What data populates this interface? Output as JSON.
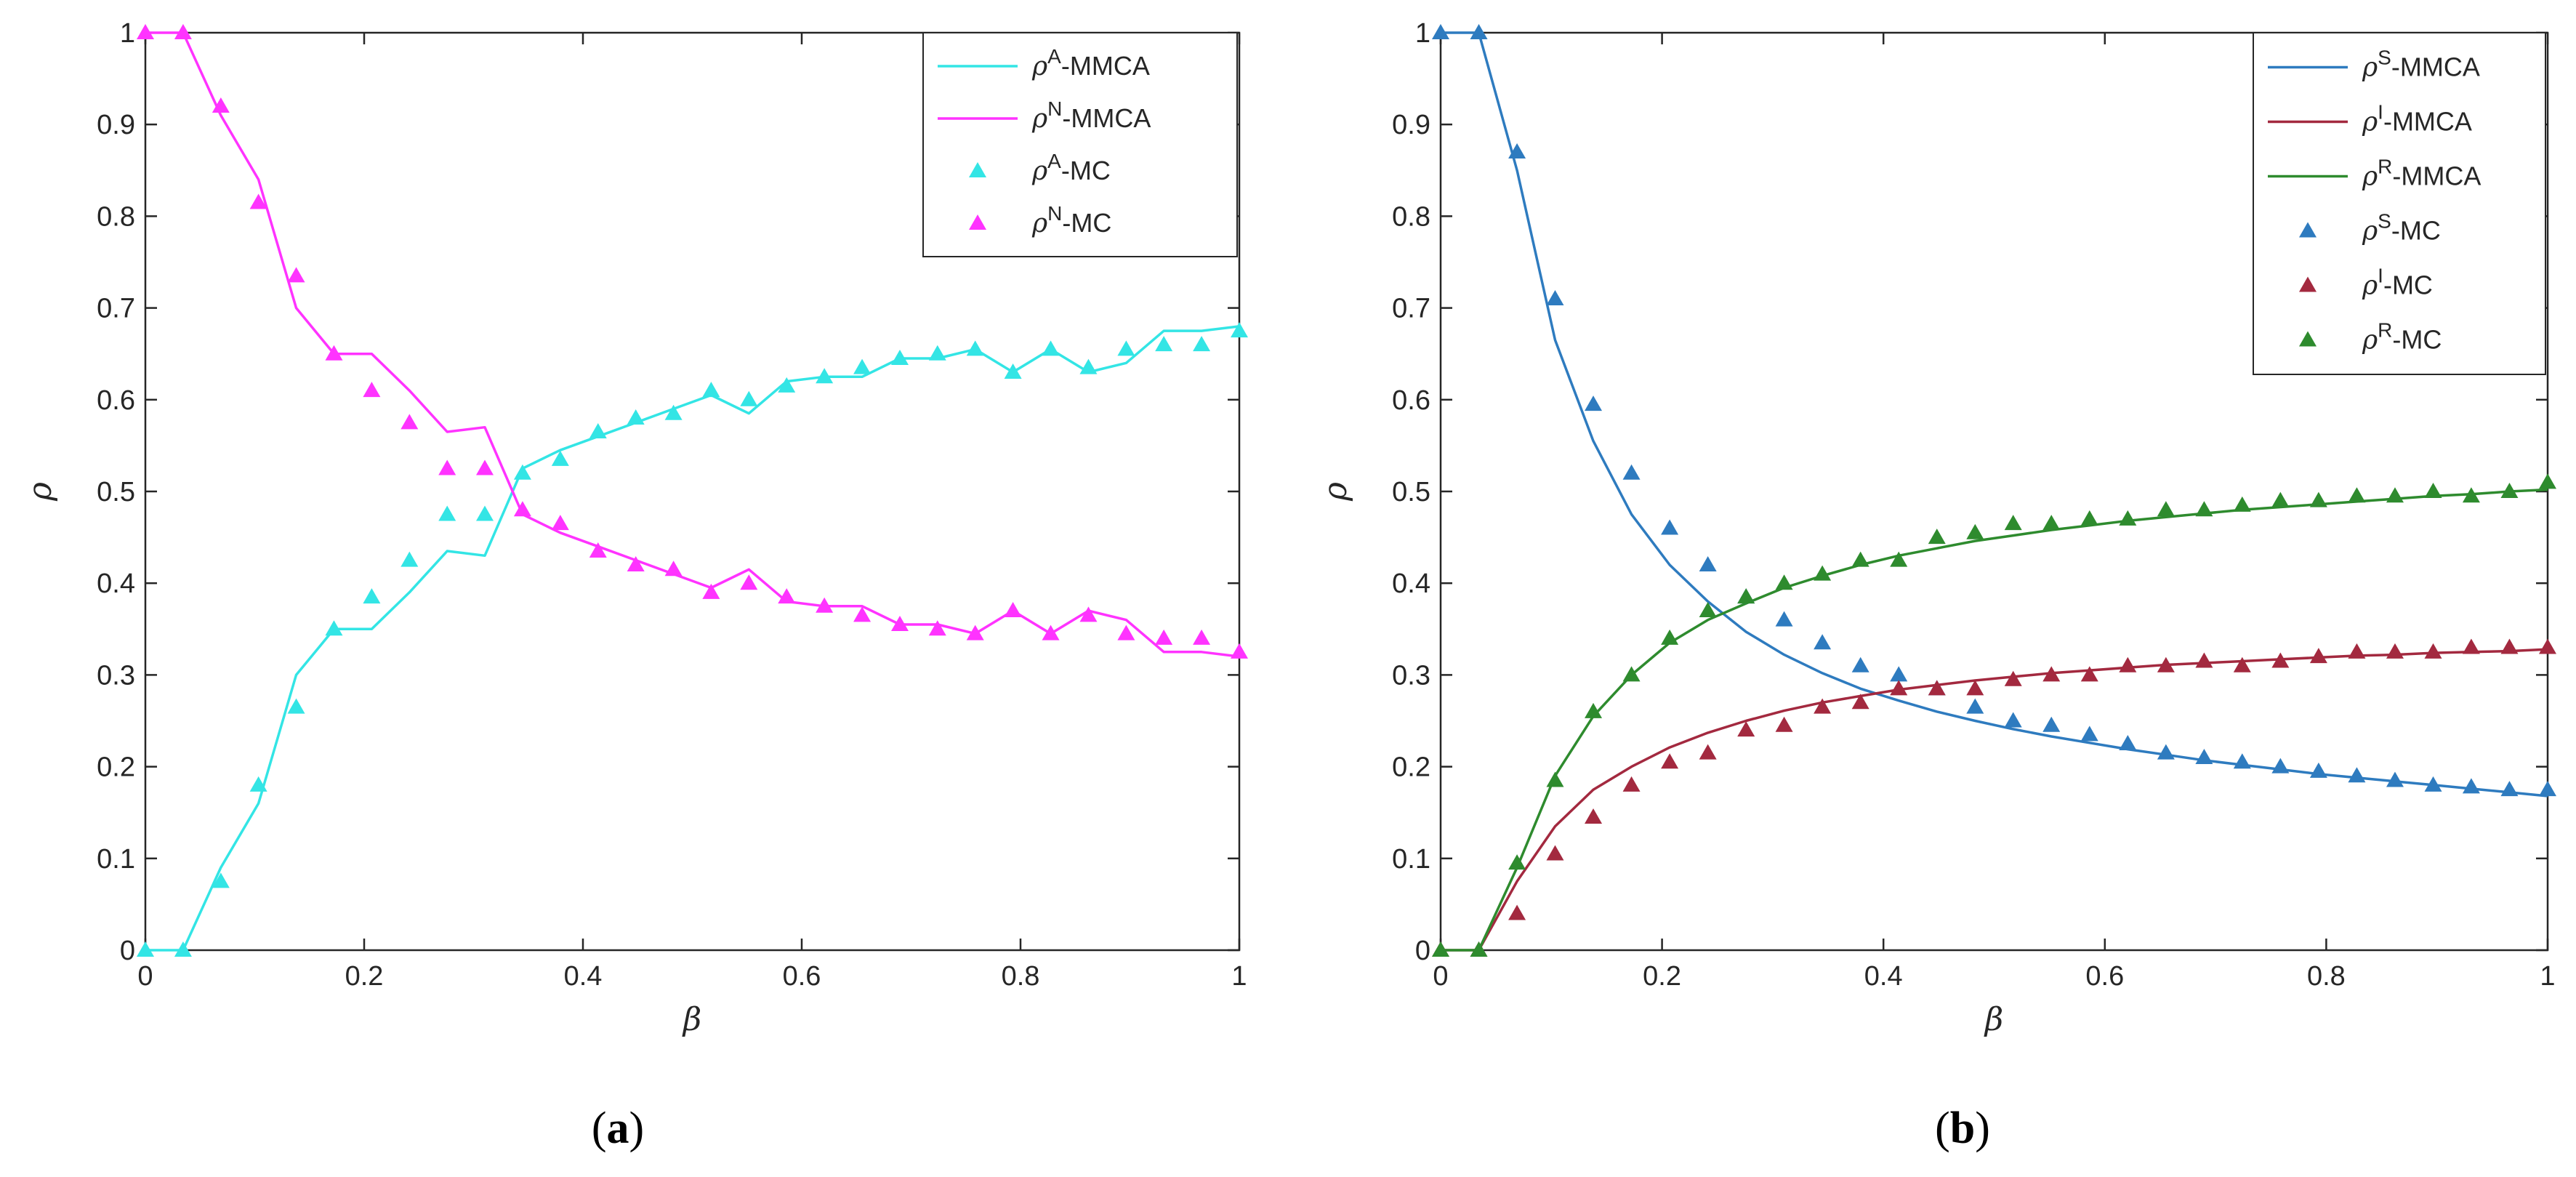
{
  "chart_data": [
    {
      "type": "line",
      "panel": "a",
      "caption_open": "(",
      "caption_letter": "a",
      "caption_close": ")",
      "xlabel": "β",
      "ylabel": "ρ",
      "xlim": [
        0,
        1
      ],
      "ylim": [
        0,
        1
      ],
      "xticks": [
        0,
        0.2,
        0.4,
        0.6,
        0.8,
        1
      ],
      "xtick_labels": [
        "0",
        "0.2",
        "0.4",
        "0.6",
        "0.8",
        "1"
      ],
      "yticks": [
        0,
        0.1,
        0.2,
        0.3,
        0.4,
        0.5,
        0.6,
        0.7,
        0.8,
        0.9,
        1
      ],
      "ytick_labels": [
        "0",
        "0.1",
        "0.2",
        "0.3",
        "0.4",
        "0.5",
        "0.6",
        "0.7",
        "0.8",
        "0.9",
        "1"
      ],
      "legend_position": "top-right",
      "x": [
        0,
        0.0345,
        0.069,
        0.1034,
        0.1379,
        0.1724,
        0.2069,
        0.2414,
        0.2759,
        0.3103,
        0.3448,
        0.3793,
        0.4138,
        0.4483,
        0.4828,
        0.5172,
        0.5517,
        0.5862,
        0.6207,
        0.6552,
        0.6897,
        0.7241,
        0.7586,
        0.7931,
        0.8276,
        0.8621,
        0.8966,
        0.931,
        0.9655,
        1
      ],
      "series": [
        {
          "name": "A-MMCA",
          "symbol": "ρ",
          "sup": "A",
          "suffix": "-MMCA",
          "kind": "line",
          "color": "#33e5e5",
          "values": [
            0,
            0,
            0.09,
            0.16,
            0.3,
            0.35,
            0.35,
            0.39,
            0.435,
            0.43,
            0.525,
            0.545,
            0.56,
            0.575,
            0.59,
            0.605,
            0.585,
            0.62,
            0.625,
            0.625,
            0.645,
            0.645,
            0.655,
            0.63,
            0.655,
            0.63,
            0.64,
            0.675,
            0.675,
            0.68
          ]
        },
        {
          "name": "N-MMCA",
          "symbol": "ρ",
          "sup": "N",
          "suffix": "-MMCA",
          "kind": "line",
          "color": "#ff33ff",
          "values": [
            1,
            1,
            0.91,
            0.84,
            0.7,
            0.65,
            0.65,
            0.61,
            0.565,
            0.57,
            0.475,
            0.455,
            0.44,
            0.425,
            0.41,
            0.395,
            0.415,
            0.38,
            0.375,
            0.375,
            0.355,
            0.355,
            0.345,
            0.37,
            0.345,
            0.37,
            0.36,
            0.325,
            0.325,
            0.32
          ]
        },
        {
          "name": "A-MC",
          "symbol": "ρ",
          "sup": "A",
          "suffix": "-MC",
          "kind": "marker",
          "color": "#33e5e5",
          "values": [
            0,
            0,
            0.075,
            0.18,
            0.265,
            0.35,
            0.385,
            0.425,
            0.475,
            0.475,
            0.52,
            0.535,
            0.565,
            0.58,
            0.585,
            0.61,
            0.6,
            0.615,
            0.625,
            0.635,
            0.645,
            0.65,
            0.655,
            0.63,
            0.655,
            0.635,
            0.655,
            0.66,
            0.66,
            0.675
          ]
        },
        {
          "name": "N-MC",
          "symbol": "ρ",
          "sup": "N",
          "suffix": "-MC",
          "kind": "marker",
          "color": "#ff33ff",
          "values": [
            1,
            1,
            0.92,
            0.815,
            0.735,
            0.65,
            0.61,
            0.575,
            0.525,
            0.525,
            0.48,
            0.465,
            0.435,
            0.42,
            0.415,
            0.39,
            0.4,
            0.385,
            0.375,
            0.365,
            0.355,
            0.35,
            0.345,
            0.37,
            0.345,
            0.365,
            0.345,
            0.34,
            0.34,
            0.325
          ]
        }
      ]
    },
    {
      "type": "line",
      "panel": "b",
      "caption_open": "(",
      "caption_letter": "b",
      "caption_close": ")",
      "xlabel": "β",
      "ylabel": "ρ",
      "xlim": [
        0,
        1
      ],
      "ylim": [
        0,
        1
      ],
      "xticks": [
        0,
        0.2,
        0.4,
        0.6,
        0.8,
        1
      ],
      "xtick_labels": [
        "0",
        "0.2",
        "0.4",
        "0.6",
        "0.8",
        "1"
      ],
      "yticks": [
        0,
        0.1,
        0.2,
        0.3,
        0.4,
        0.5,
        0.6,
        0.7,
        0.8,
        0.9,
        1
      ],
      "ytick_labels": [
        "0",
        "0.1",
        "0.2",
        "0.3",
        "0.4",
        "0.5",
        "0.6",
        "0.7",
        "0.8",
        "0.9",
        "1"
      ],
      "legend_position": "top-right",
      "x": [
        0,
        0.0345,
        0.069,
        0.1034,
        0.1379,
        0.1724,
        0.2069,
        0.2414,
        0.2759,
        0.3103,
        0.3448,
        0.3793,
        0.4138,
        0.4483,
        0.4828,
        0.5172,
        0.5517,
        0.5862,
        0.6207,
        0.6552,
        0.6897,
        0.7241,
        0.7586,
        0.7931,
        0.8276,
        0.8621,
        0.8966,
        0.931,
        0.9655,
        1
      ],
      "series": [
        {
          "name": "S-MMCA",
          "symbol": "ρ",
          "sup": "S",
          "suffix": "-MMCA",
          "kind": "line",
          "color": "#2e7bbf",
          "values": [
            1,
            1,
            0.85,
            0.665,
            0.555,
            0.475,
            0.42,
            0.38,
            0.347,
            0.322,
            0.302,
            0.285,
            0.272,
            0.26,
            0.25,
            0.241,
            0.233,
            0.226,
            0.219,
            0.213,
            0.207,
            0.202,
            0.197,
            0.192,
            0.188,
            0.184,
            0.18,
            0.176,
            0.172,
            0.168
          ]
        },
        {
          "name": "I-MMCA",
          "symbol": "ρ",
          "sup": "I",
          "suffix": "-MMCA",
          "kind": "line",
          "color": "#a3293f",
          "values": [
            0,
            0,
            0.075,
            0.135,
            0.175,
            0.2,
            0.221,
            0.237,
            0.25,
            0.261,
            0.27,
            0.277,
            0.284,
            0.289,
            0.294,
            0.298,
            0.302,
            0.305,
            0.308,
            0.311,
            0.313,
            0.315,
            0.317,
            0.319,
            0.321,
            0.322,
            0.324,
            0.325,
            0.326,
            0.328
          ]
        },
        {
          "name": "R-MMCA",
          "symbol": "ρ",
          "sup": "R",
          "suffix": "-MMCA",
          "kind": "line",
          "color": "#2e8b2e",
          "values": [
            0,
            0,
            0.09,
            0.19,
            0.255,
            0.3,
            0.335,
            0.36,
            0.378,
            0.395,
            0.408,
            0.42,
            0.43,
            0.438,
            0.446,
            0.452,
            0.458,
            0.463,
            0.468,
            0.472,
            0.476,
            0.48,
            0.483,
            0.486,
            0.489,
            0.492,
            0.495,
            0.497,
            0.5,
            0.502
          ]
        },
        {
          "name": "S-MC",
          "symbol": "ρ",
          "sup": "S",
          "suffix": "-MC",
          "kind": "marker",
          "color": "#2e7bbf",
          "values": [
            1,
            1,
            0.87,
            0.71,
            0.595,
            0.52,
            0.46,
            0.42,
            0.385,
            0.36,
            0.335,
            0.31,
            0.3,
            0.285,
            0.265,
            0.25,
            0.245,
            0.235,
            0.225,
            0.215,
            0.21,
            0.205,
            0.2,
            0.195,
            0.19,
            0.185,
            0.18,
            0.178,
            0.175,
            0.175
          ]
        },
        {
          "name": "I-MC",
          "symbol": "ρ",
          "sup": "I",
          "suffix": "-MC",
          "kind": "marker",
          "color": "#a3293f",
          "values": [
            0,
            0,
            0.04,
            0.105,
            0.145,
            0.18,
            0.205,
            0.215,
            0.24,
            0.245,
            0.265,
            0.27,
            0.285,
            0.285,
            0.285,
            0.295,
            0.3,
            0.3,
            0.31,
            0.31,
            0.315,
            0.31,
            0.315,
            0.32,
            0.325,
            0.325,
            0.325,
            0.33,
            0.33,
            0.33
          ]
        },
        {
          "name": "R-MC",
          "symbol": "ρ",
          "sup": "R",
          "suffix": "-MC",
          "kind": "marker",
          "color": "#2e8b2e",
          "values": [
            0,
            0,
            0.095,
            0.185,
            0.26,
            0.3,
            0.34,
            0.37,
            0.385,
            0.4,
            0.41,
            0.425,
            0.425,
            0.45,
            0.455,
            0.465,
            0.465,
            0.47,
            0.47,
            0.48,
            0.48,
            0.485,
            0.49,
            0.49,
            0.495,
            0.495,
            0.5,
            0.495,
            0.5,
            0.51
          ]
        }
      ]
    }
  ]
}
